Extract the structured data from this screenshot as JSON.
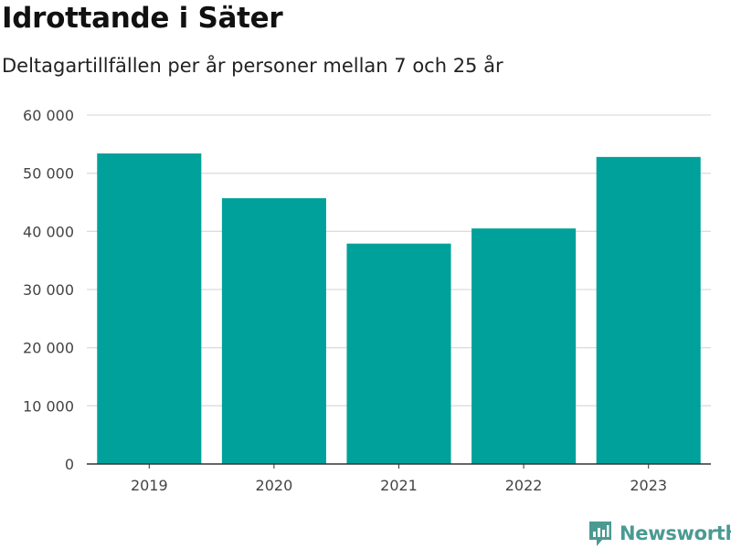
{
  "brand": {
    "name": "Newsworthy",
    "icon": "newsworthy-logo-icon",
    "color": "#4a9a92"
  },
  "chart_data": {
    "type": "bar",
    "title": "Idrottande i Säter",
    "subtitle": "Deltagartillfällen per år personer mellan 7 och 25 år",
    "xlabel": "",
    "ylabel": "",
    "categories": [
      "2019",
      "2020",
      "2021",
      "2022",
      "2023"
    ],
    "series": [
      {
        "values": [
          53400,
          45700,
          37900,
          40500,
          52800
        ]
      }
    ],
    "ylim": [
      0,
      60000
    ],
    "yticks": [
      0,
      10000,
      20000,
      30000,
      40000,
      50000,
      60000
    ],
    "ytick_labels": [
      "0",
      "10 000",
      "20 000",
      "30 000",
      "40 000",
      "50 000",
      "60 000"
    ],
    "grid": true,
    "legend": "none",
    "bar_color": "#00a19a"
  }
}
